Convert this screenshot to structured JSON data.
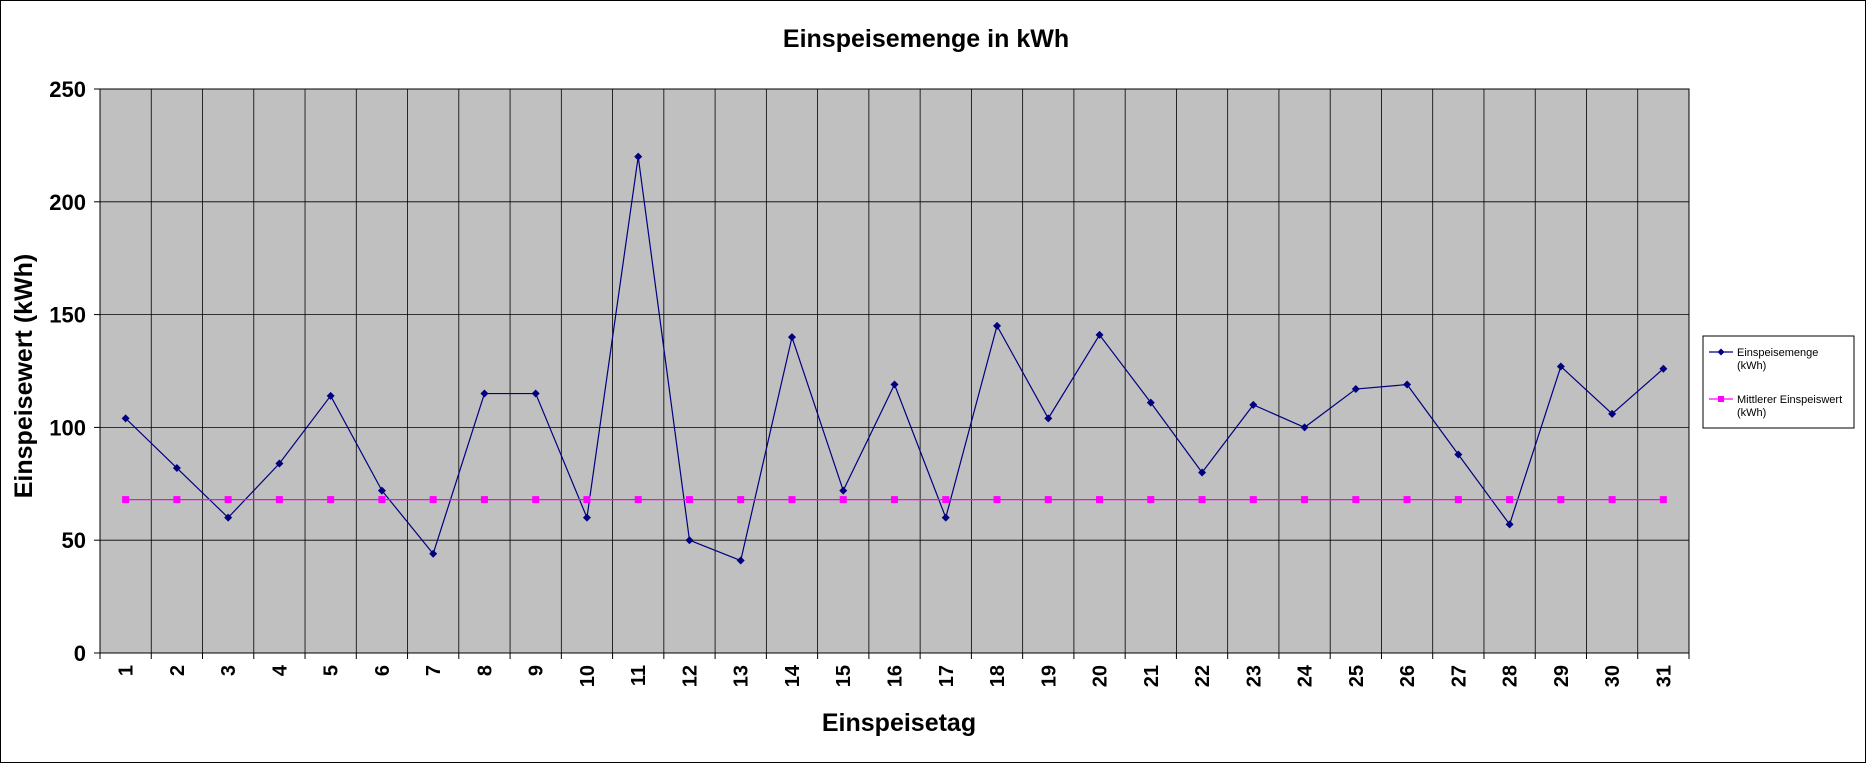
{
  "colors": {
    "plot_background": "#c0c0c0",
    "gridline": "#000000",
    "series1": "#000080",
    "series2": "#ff00ff"
  },
  "chart_data": {
    "type": "line",
    "title": "Einspeisemenge in kWh",
    "xlabel": "Einspeisetag",
    "ylabel": "Einspeisewert  (kWh)",
    "categories": [
      "1",
      "2",
      "3",
      "4",
      "5",
      "6",
      "7",
      "8",
      "9",
      "10",
      "11",
      "12",
      "13",
      "14",
      "15",
      "16",
      "17",
      "18",
      "19",
      "20",
      "21",
      "22",
      "23",
      "24",
      "25",
      "26",
      "27",
      "28",
      "29",
      "30",
      "31"
    ],
    "ylim": [
      0,
      250
    ],
    "yticks": [
      "0",
      "50",
      "100",
      "150",
      "200",
      "250"
    ],
    "grid": true,
    "legend_position": "right",
    "series": [
      {
        "name": "Einspeisemenge (kWh)",
        "name_lines": [
          "Einspeisemenge",
          "(kWh)"
        ],
        "marker": "diamond",
        "values": [
          104,
          82,
          60,
          84,
          114,
          72,
          44,
          115,
          115,
          60,
          220,
          50,
          41,
          140,
          72,
          119,
          60,
          145,
          104,
          141,
          111,
          80,
          110,
          100,
          117,
          119,
          88,
          57,
          127,
          106,
          126
        ]
      },
      {
        "name": "Mittlerer Einspeiswert (kWh)",
        "name_lines": [
          "Mittlerer Einspeiswert",
          "(kWh)"
        ],
        "marker": "square",
        "values": [
          68,
          68,
          68,
          68,
          68,
          68,
          68,
          68,
          68,
          68,
          68,
          68,
          68,
          68,
          68,
          68,
          68,
          68,
          68,
          68,
          68,
          68,
          68,
          68,
          68,
          68,
          68,
          68,
          68,
          68,
          68
        ]
      }
    ]
  }
}
